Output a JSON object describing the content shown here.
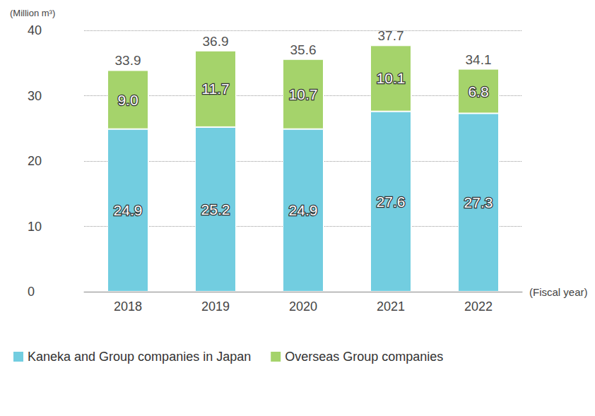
{
  "chart_data": {
    "type": "bar",
    "stacked": true,
    "data_labels": true,
    "grid": true,
    "legend": "bottom-left",
    "y_label": "(Million m³)",
    "x_label": "(Fiscal year)",
    "categories": [
      "2018",
      "2019",
      "2020",
      "2021",
      "2022"
    ],
    "series": [
      {
        "name": "Kaneka and Group companies in Japan",
        "color": "#72cde0",
        "values": [
          24.9,
          25.2,
          24.9,
          27.6,
          27.3
        ],
        "value_labels": [
          "24.9",
          "25.2",
          "24.9",
          "27.6",
          "27.3"
        ]
      },
      {
        "name": "Overseas Group companies",
        "color": "#a5d36b",
        "values": [
          9.0,
          11.7,
          10.7,
          10.1,
          6.8
        ],
        "value_labels": [
          "9.0",
          "11.7",
          "10.7",
          "10.1",
          "6.8"
        ]
      }
    ],
    "totals": [
      33.9,
      36.9,
      35.6,
      37.7,
      34.1
    ],
    "ylim": [
      0,
      40
    ],
    "yticks": [
      0,
      10,
      20,
      30,
      40
    ]
  }
}
